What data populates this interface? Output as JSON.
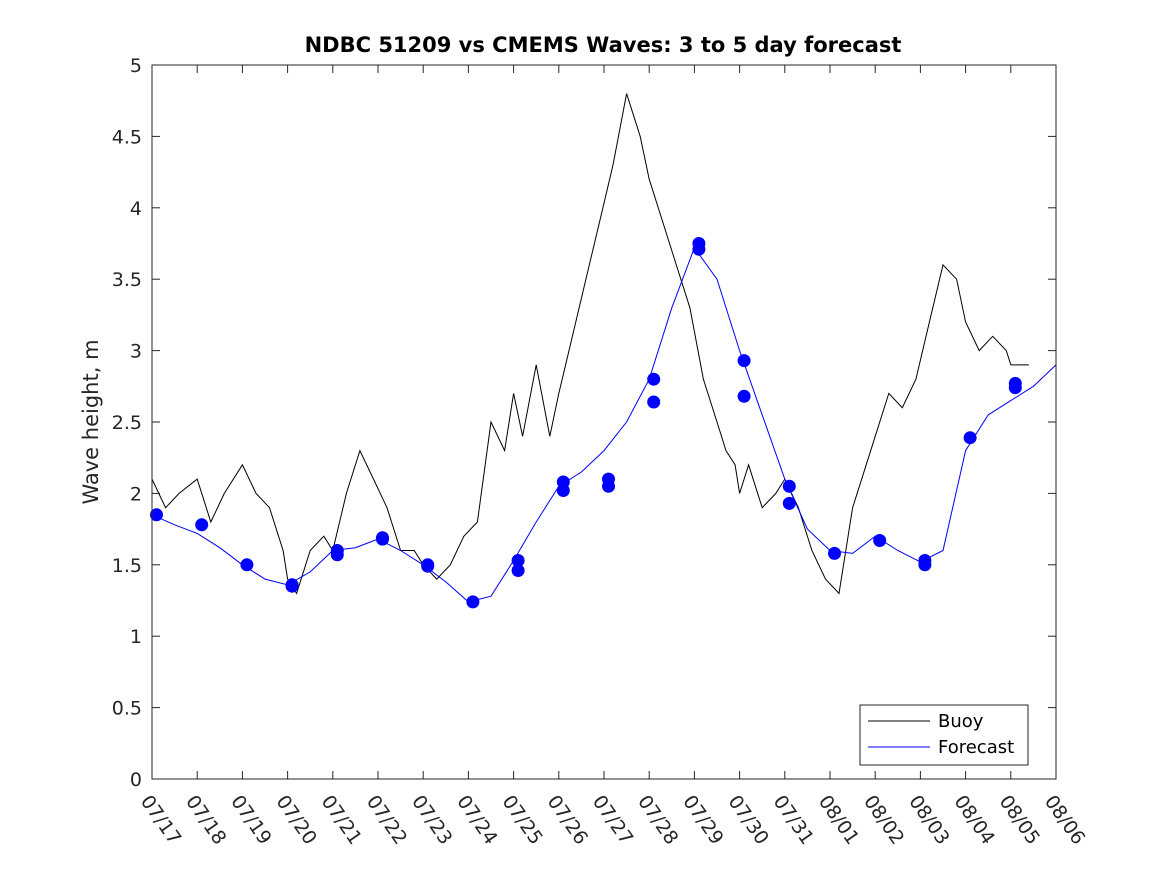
{
  "chart_data": {
    "type": "line",
    "title": "NDBC 51209 vs CMEMS Waves: 3 to 5 day forecast",
    "xlabel": "",
    "ylabel": "Wave height, m",
    "xlim": [
      0,
      20
    ],
    "ylim": [
      0,
      5
    ],
    "x_tick_labels": [
      "07/17",
      "07/18",
      "07/19",
      "07/20",
      "07/21",
      "07/22",
      "07/23",
      "07/24",
      "07/25",
      "07/26",
      "07/27",
      "07/28",
      "07/29",
      "07/30",
      "07/31",
      "08/01",
      "08/02",
      "08/03",
      "08/04",
      "08/05",
      "08/06"
    ],
    "y_ticks": [
      0,
      0.5,
      1,
      1.5,
      2,
      2.5,
      3,
      3.5,
      4,
      4.5,
      5
    ],
    "y_tick_labels": [
      "0",
      "0.5",
      "1",
      "1.5",
      "2",
      "2.5",
      "3",
      "3.5",
      "4",
      "4.5",
      "5"
    ],
    "legend_position": "bottom-right",
    "colors": {
      "buoy": "#000000",
      "forecast": "#0000ff"
    },
    "series": [
      {
        "name": "Buoy",
        "color": "#000000",
        "x": [
          0.0,
          0.3,
          0.6,
          1.0,
          1.3,
          1.6,
          2.0,
          2.3,
          2.6,
          2.9,
          3.0,
          3.2,
          3.5,
          3.8,
          4.0,
          4.3,
          4.6,
          4.9,
          5.2,
          5.5,
          5.8,
          6.0,
          6.3,
          6.6,
          6.9,
          7.2,
          7.5,
          7.8,
          8.0,
          8.2,
          8.5,
          8.8,
          9.0,
          9.3,
          9.6,
          9.9,
          10.2,
          10.5,
          10.8,
          11.0,
          11.3,
          11.6,
          11.9,
          12.2,
          12.5,
          12.7,
          12.9,
          13.0,
          13.2,
          13.5,
          13.8,
          14.0,
          14.3,
          14.6,
          14.9,
          15.2,
          15.5,
          15.8,
          16.0,
          16.3,
          16.6,
          16.9,
          17.2,
          17.5,
          17.8,
          18.0,
          18.3,
          18.6,
          18.9,
          19.0,
          19.2,
          19.4
        ],
        "y": [
          2.1,
          1.9,
          2.0,
          2.1,
          1.8,
          2.0,
          2.2,
          2.0,
          1.9,
          1.6,
          1.4,
          1.3,
          1.6,
          1.7,
          1.6,
          2.0,
          2.3,
          2.1,
          1.9,
          1.6,
          1.6,
          1.5,
          1.4,
          1.5,
          1.7,
          1.8,
          2.5,
          2.3,
          2.7,
          2.4,
          2.9,
          2.4,
          2.7,
          3.1,
          3.5,
          3.9,
          4.3,
          4.8,
          4.5,
          4.2,
          3.9,
          3.6,
          3.3,
          2.8,
          2.5,
          2.3,
          2.2,
          2.0,
          2.2,
          1.9,
          2.0,
          2.1,
          1.9,
          1.6,
          1.4,
          1.3,
          1.9,
          2.2,
          2.4,
          2.7,
          2.6,
          2.8,
          3.2,
          3.6,
          3.5,
          3.2,
          3.0,
          3.1,
          3.0,
          2.9,
          2.9,
          2.9
        ]
      },
      {
        "name": "Forecast",
        "color": "#0000ff",
        "x": [
          0.0,
          0.5,
          1.0,
          1.5,
          2.0,
          2.5,
          3.0,
          3.5,
          4.0,
          4.5,
          5.0,
          5.5,
          6.0,
          6.5,
          7.0,
          7.5,
          8.0,
          8.5,
          9.0,
          9.5,
          10.0,
          10.5,
          11.0,
          11.5,
          12.0,
          12.5,
          13.0,
          13.5,
          14.0,
          14.5,
          15.0,
          15.5,
          16.0,
          16.5,
          17.0,
          17.5,
          18.0,
          18.5,
          19.0,
          19.5,
          20.0
        ],
        "y": [
          1.85,
          1.78,
          1.72,
          1.62,
          1.5,
          1.4,
          1.36,
          1.45,
          1.6,
          1.62,
          1.68,
          1.6,
          1.5,
          1.38,
          1.24,
          1.28,
          1.53,
          1.8,
          2.05,
          2.15,
          2.3,
          2.5,
          2.8,
          3.3,
          3.72,
          3.5,
          3.0,
          2.55,
          2.1,
          1.75,
          1.6,
          1.58,
          1.7,
          1.6,
          1.52,
          1.6,
          2.3,
          2.55,
          2.65,
          2.75,
          2.9
        ]
      }
    ],
    "markers": {
      "color": "#0000ff",
      "x": [
        0.1,
        1.1,
        2.1,
        3.1,
        4.1,
        5.1,
        6.1,
        7.1,
        8.1,
        9.1,
        10.1,
        11.1,
        12.1,
        13.1,
        14.1,
        15.1,
        16.1,
        17.1,
        18.1,
        19.1
      ],
      "y": [
        1.85,
        1.78,
        1.5,
        1.36,
        1.6,
        1.69,
        1.5,
        1.24,
        1.53,
        2.08,
        2.1,
        2.8,
        3.75,
        2.93,
        2.05,
        1.58,
        1.67,
        1.53,
        2.39,
        2.77
      ],
      "x2": [
        3.1,
        4.1,
        5.1,
        6.1,
        8.1,
        9.1,
        10.1,
        11.1,
        12.1,
        13.1,
        14.1,
        17.1,
        19.1
      ],
      "y2": [
        1.35,
        1.57,
        1.68,
        1.49,
        1.46,
        2.02,
        2.05,
        2.64,
        3.71,
        2.68,
        1.93,
        1.5,
        2.74
      ]
    },
    "legend": [
      "Buoy",
      "Forecast"
    ]
  }
}
